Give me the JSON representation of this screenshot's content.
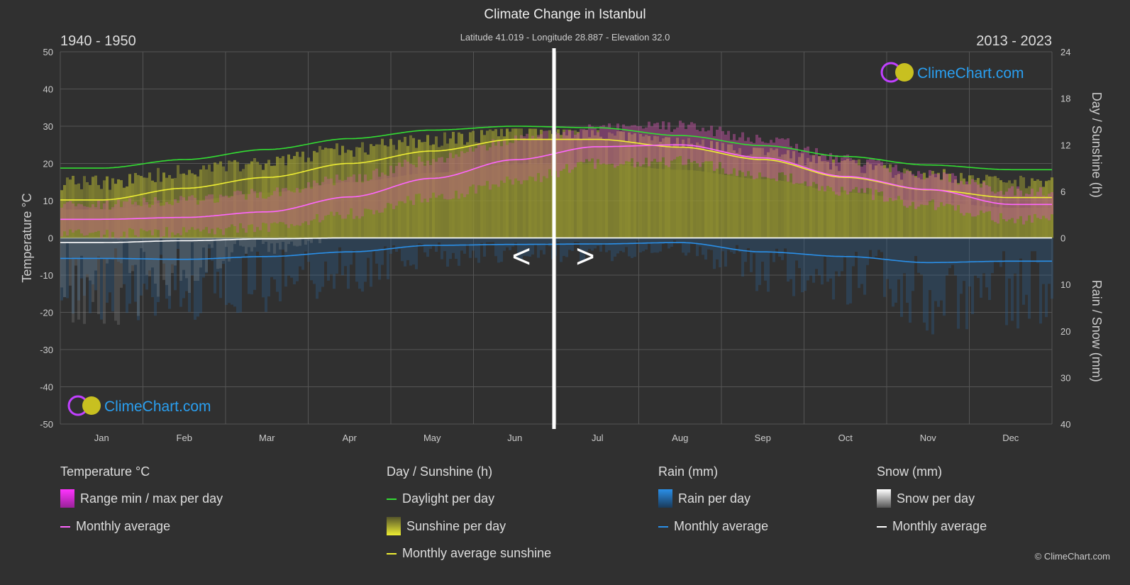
{
  "chart_data": {
    "type": "line",
    "title": "Climate Change in Istanbul",
    "subtitle": "Latitude 41.019 - Longitude 28.887 - Elevation 32.0",
    "period_left": "1940 - 1950",
    "period_right": "2013 - 2023",
    "categories": [
      "Jan",
      "Feb",
      "Mar",
      "Apr",
      "May",
      "Jun",
      "Jul",
      "Aug",
      "Sep",
      "Oct",
      "Nov",
      "Dec"
    ],
    "y_left": {
      "label": "Temperature °C",
      "range": [
        -50,
        50
      ],
      "ticks": [
        "50",
        "40",
        "30",
        "20",
        "10",
        "0",
        "-10",
        "-20",
        "-30",
        "-40",
        "-50"
      ]
    },
    "y_right_top": {
      "label": "Day / Sunshine (h)",
      "range": [
        0,
        24
      ],
      "ticks": [
        "24",
        "18",
        "12",
        "6",
        "0"
      ]
    },
    "y_right_bottom": {
      "label": "Rain / Snow (mm)",
      "range": [
        0,
        40
      ],
      "ticks": [
        "10",
        "20",
        "30",
        "40"
      ]
    },
    "series": [
      {
        "name": "Temperature monthly average",
        "unit": "°C",
        "color": "#ff66ff",
        "values": [
          5,
          5.5,
          7,
          11,
          16,
          21,
          24.5,
          25,
          21.5,
          16.5,
          13,
          9
        ]
      },
      {
        "name": "Temperature range min",
        "unit": "°C",
        "values": [
          1,
          1.5,
          3,
          6.5,
          11,
          15.5,
          20,
          20.5,
          17,
          12.5,
          9,
          5
        ]
      },
      {
        "name": "Temperature range max",
        "unit": "°C",
        "values": [
          9,
          10,
          12,
          16,
          21,
          26.5,
          29.5,
          30,
          26.5,
          21,
          17,
          12.5
        ]
      },
      {
        "name": "Daylight per day",
        "unit": "h",
        "color": "#33dd33",
        "values": [
          9.0,
          10.1,
          11.4,
          12.8,
          13.9,
          14.4,
          14.2,
          13.2,
          11.9,
          10.5,
          9.4,
          8.8
        ]
      },
      {
        "name": "Monthly average sunshine",
        "unit": "h",
        "color": "#eeee33",
        "values": [
          4.9,
          6.4,
          7.8,
          9.6,
          11.2,
          12.7,
          12.7,
          11.7,
          10.1,
          7.8,
          6.2,
          5.2
        ]
      },
      {
        "name": "Rain monthly average",
        "unit": "mm",
        "color": "#2a8fe8",
        "values": [
          4.4,
          4.6,
          4.0,
          3.0,
          1.6,
          1.4,
          1.3,
          1.0,
          3.0,
          4.0,
          5.3,
          5.0
        ]
      },
      {
        "name": "Snow monthly average",
        "unit": "mm",
        "color": "#ffffff",
        "values": [
          1.0,
          0.6,
          0.2,
          0,
          0,
          0,
          0,
          0,
          0,
          0,
          0,
          0
        ]
      }
    ],
    "nav": {
      "prev": "<",
      "next": ">"
    }
  },
  "legend": {
    "temperature": {
      "heading": "Temperature °C",
      "items": [
        "Range min / max per day",
        "Monthly average"
      ]
    },
    "sunshine": {
      "heading": "Day / Sunshine (h)",
      "items": [
        "Daylight per day",
        "Sunshine per day",
        "Monthly average sunshine"
      ]
    },
    "rain": {
      "heading": "Rain (mm)",
      "items": [
        "Rain per day",
        "Monthly average"
      ]
    },
    "snow": {
      "heading": "Snow (mm)",
      "items": [
        "Snow per day",
        "Monthly average"
      ]
    }
  },
  "logo_text": "ClimeChart.com",
  "copyright": "© ClimeChart.com"
}
